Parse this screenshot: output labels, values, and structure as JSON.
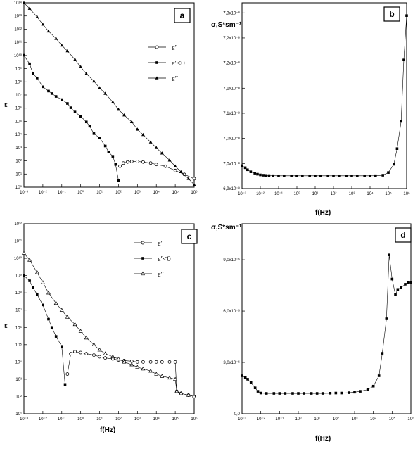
{
  "panels": {
    "a": {
      "label": "a"
    },
    "b": {
      "label": "b"
    },
    "c": {
      "label": "c"
    },
    "d": {
      "label": "d"
    }
  },
  "chart_data": [
    {
      "panel": "a",
      "type": "scatter",
      "xscale": "log",
      "yscale": "log",
      "xlabel": "",
      "ylabel": "ε",
      "xlim": [
        0.001,
        1000000
      ],
      "ylim": [
        10,
        100000000000000.0
      ],
      "xticks": [
        "10⁻³",
        "10⁻²",
        "10⁻¹",
        "10⁰",
        "10¹",
        "10²",
        "10³",
        "10⁴",
        "10⁵",
        "10⁶"
      ],
      "yticks": [
        "10⁰",
        "10¹",
        "10²",
        "10³",
        "10⁴",
        "10⁵",
        "10⁶",
        "10⁷",
        "10⁸",
        "10⁹",
        "10¹⁰",
        "10¹¹",
        "10¹²",
        "10¹³",
        "10¹⁴"
      ],
      "legend": [
        "ε′",
        "ε′<0",
        "ε″"
      ],
      "series": [
        {
          "name": "ε′",
          "marker": "open-circle",
          "x": [
            120,
            180,
            300,
            500,
            1000,
            2000,
            5000,
            10000,
            30000,
            100000,
            300000,
            1000000
          ],
          "y": [
            300,
            500,
            600,
            650,
            650,
            600,
            500,
            400,
            300,
            150,
            80,
            40
          ]
        },
        {
          "name": "ε′<0",
          "marker": "filled-square",
          "x": [
            0.001,
            0.002,
            0.003,
            0.005,
            0.01,
            0.02,
            0.03,
            0.05,
            0.1,
            0.2,
            0.3,
            0.5,
            1,
            2,
            3,
            5,
            10,
            20,
            30,
            50,
            70,
            100
          ],
          "y": [
            20000000000.0,
            5000000000.0,
            1000000000.0,
            500000000.0,
            120000000.0,
            60000000.0,
            40000000.0,
            25000000.0,
            15000000.0,
            8000000.0,
            4000000.0,
            2000000.0,
            1000000.0,
            400000.0,
            200000.0,
            60000.0,
            30000.0,
            8000.0,
            3000.0,
            1500.0,
            400,
            30
          ]
        },
        {
          "name": "ε″",
          "marker": "filled-triangle",
          "x": [
            0.001,
            0.002,
            0.005,
            0.01,
            0.02,
            0.05,
            0.1,
            0.2,
            0.5,
            1,
            2,
            5,
            10,
            20,
            50,
            100,
            200,
            500,
            1000,
            2000,
            5000,
            10000,
            20000,
            50000,
            100000,
            200000,
            500000,
            1000000
          ],
          "y": [
            100000000000000.0,
            40000000000000.0,
            10000000000000.0,
            3000000000000.0,
            1000000000000.0,
            300000000000.0,
            100000000000.0,
            40000000000.0,
            10000000000.0,
            3000000000.0,
            1000000000.0,
            300000000.0,
            100000000.0,
            40000000.0,
            10000000.0,
            3000000.0,
            1200000.0,
            400000.0,
            120000.0,
            50000.0,
            15000.0,
            6000.0,
            2500.0,
            800,
            300,
            120,
            40,
            15
          ]
        }
      ]
    },
    {
      "panel": "b",
      "type": "scatter",
      "xscale": "log",
      "xlabel": "f(Hz)",
      "ylabel": "σ,S*sm⁻¹",
      "xlim": [
        0.001,
        1000000
      ],
      "xticks": [
        "10⁻³",
        "10⁻²",
        "10⁻¹",
        "10⁰",
        "10¹",
        "10²",
        "10³",
        "10⁴",
        "10⁵",
        "10⁶"
      ],
      "yticks": [
        "6,9x10⁻⁸",
        "7,0x10⁻⁸",
        "7,0x10⁻⁸",
        "7,1x10⁻⁸",
        "7,1x10⁻⁸",
        "7,2x10⁻⁸",
        "7,2x10⁻⁸",
        "7,3x10⁻⁸"
      ],
      "series": [
        {
          "marker": "filled-square",
          "x": [
            0.001,
            0.0015,
            0.002,
            0.003,
            0.005,
            0.007,
            0.01,
            0.015,
            0.02,
            0.03,
            0.05,
            0.1,
            0.2,
            0.5,
            1,
            2,
            5,
            10,
            20,
            50,
            100,
            200,
            500,
            1000,
            2000,
            5000,
            10000,
            20000,
            50000,
            100000,
            200000,
            300000,
            500000,
            700000,
            1000000
          ],
          "y": [
            0.8,
            0.77,
            0.74,
            0.71,
            0.69,
            0.675,
            0.665,
            0.66,
            0.657,
            0.655,
            0.653,
            0.652,
            0.652,
            0.652,
            0.652,
            0.652,
            0.652,
            0.652,
            0.652,
            0.652,
            0.652,
            0.652,
            0.652,
            0.652,
            0.652,
            0.652,
            0.652,
            0.653,
            0.66,
            0.7,
            0.82,
            1.05,
            1.45,
            2.35,
            3.0
          ]
        }
      ]
    },
    {
      "panel": "c",
      "type": "scatter",
      "xscale": "log",
      "yscale": "log",
      "xlabel": "f(Hz)",
      "ylabel": "ε",
      "xlim": [
        0.001,
        1000000
      ],
      "ylim": [
        10,
        1000000000000.0
      ],
      "xticks": [
        "10⁻³",
        "10⁻²",
        "10⁻¹",
        "10⁰",
        "10¹",
        "10²",
        "10³",
        "10⁴",
        "10⁵",
        "10⁶"
      ],
      "yticks": [
        "10¹",
        "10²",
        "10³",
        "10⁴",
        "10⁵",
        "10⁶",
        "10⁷",
        "10⁸",
        "10⁹",
        "10¹⁰",
        "10¹¹",
        "10¹²"
      ],
      "legend": [
        "ε′",
        "ε′<0",
        "ε″"
      ],
      "series": [
        {
          "name": "ε′",
          "marker": "open-circle",
          "x": [
            0.2,
            0.3,
            0.5,
            1,
            2,
            5,
            10,
            20,
            50,
            100,
            200,
            500,
            1000,
            2000,
            5000,
            10000,
            20000,
            50000,
            100000,
            120000,
            200000,
            500000,
            1000000
          ],
          "y": [
            2000,
            30000,
            40000,
            35000,
            30000,
            25000,
            20000,
            17000,
            15000,
            13000,
            12000,
            11000,
            10000,
            10000,
            10000,
            10000,
            10000,
            10000,
            10000,
            200,
            150,
            120,
            100
          ]
        },
        {
          "name": "ε′<0",
          "marker": "filled-square",
          "x": [
            0.001,
            0.002,
            0.003,
            0.005,
            0.01,
            0.02,
            0.03,
            0.05,
            0.1,
            0.15
          ],
          "y": [
            1000000000.0,
            500000000.0,
            200000000.0,
            80000000.0,
            20000000.0,
            3000000.0,
            1000000.0,
            300000.0,
            80000.0,
            500
          ]
        },
        {
          "name": "ε″",
          "marker": "open-triangle",
          "x": [
            0.001,
            0.002,
            0.005,
            0.01,
            0.02,
            0.05,
            0.1,
            0.2,
            0.5,
            1,
            2,
            5,
            10,
            20,
            50,
            100,
            200,
            500,
            1000,
            2000,
            5000,
            10000,
            20000,
            50000,
            100000,
            120000,
            200000,
            500000,
            1000000
          ],
          "y": [
            20000000000.0,
            8000000000.0,
            1500000000.0,
            400000000.0,
            100000000.0,
            25000000.0,
            10000000.0,
            4000000.0,
            1500000.0,
            600000.0,
            250000.0,
            100000.0,
            50000.0,
            30000.0,
            20000.0,
            15000.0,
            10000.0,
            7000,
            5000,
            4000,
            3000,
            2000,
            1500,
            1200,
            1000,
            200,
            150,
            120,
            100
          ]
        }
      ]
    },
    {
      "panel": "d",
      "type": "scatter",
      "xscale": "log",
      "xlabel": "f(Hz)",
      "ylabel": "σ,S*sm⁻¹",
      "xlim": [
        0.001,
        1000000
      ],
      "ylim": [
        -1e-06,
        1e-05
      ],
      "xticks": [
        "10⁻³",
        "10⁻²",
        "10⁻¹",
        "10⁰",
        "10¹",
        "10²",
        "10³",
        "10⁴",
        "10⁵",
        "10⁶"
      ],
      "yticks": [
        "0,0",
        "3,0x10⁻⁶",
        "6,0x10⁻⁶",
        "9,0x10⁻⁶"
      ],
      "series": [
        {
          "marker": "filled-square",
          "x": [
            0.001,
            0.0015,
            0.002,
            0.003,
            0.005,
            0.007,
            0.01,
            0.02,
            0.05,
            0.1,
            0.2,
            0.5,
            1,
            2,
            5,
            10,
            20,
            50,
            100,
            200,
            500,
            1000,
            2000,
            5000,
            10000,
            20000,
            30000,
            50000,
            70000,
            100000,
            150000,
            200000,
            300000,
            500000,
            700000,
            1000000
          ],
          "y": [
            1.2e-06,
            1.1e-06,
            1e-06,
            8e-07,
            5e-07,
            3e-07,
            2e-07,
            1.8e-07,
            1.8e-07,
            1.8e-07,
            1.8e-07,
            1.8e-07,
            1.8e-07,
            1.8e-07,
            1.8e-07,
            1.8e-07,
            1.8e-07,
            1.9e-07,
            2e-07,
            2e-07,
            2.2e-07,
            2.5e-07,
            3e-07,
            4e-07,
            6e-07,
            1.2e-06,
            2.5e-06,
            4.5e-06,
            8.2e-06,
            6.8e-06,
            5.9e-06,
            6.2e-06,
            6.3e-06,
            6.5e-06,
            6.6e-06,
            6.6e-06
          ]
        }
      ]
    }
  ]
}
